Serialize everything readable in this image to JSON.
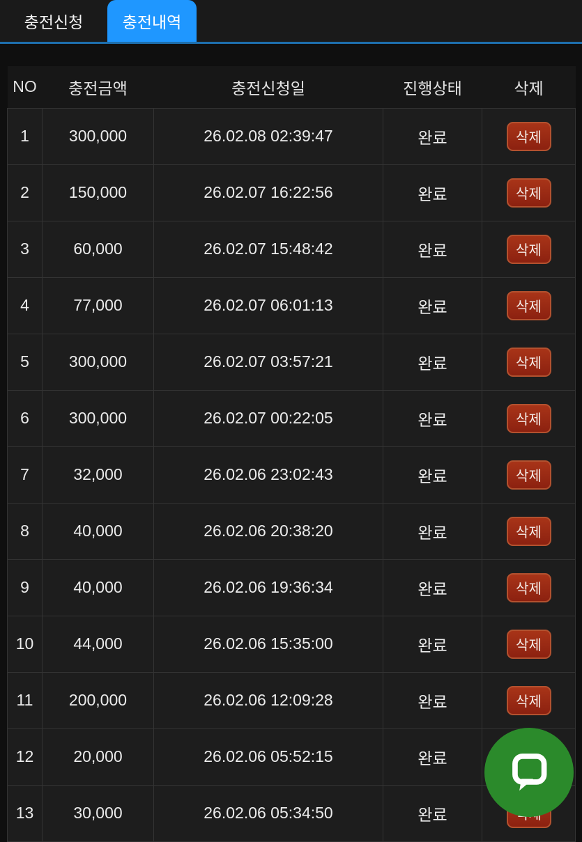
{
  "tabs": [
    {
      "label": "충전신청",
      "active": false
    },
    {
      "label": "충전내역",
      "active": true
    }
  ],
  "table": {
    "headers": [
      "NO",
      "충전금액",
      "충전신청일",
      "진행상태",
      "삭제"
    ],
    "delete_button_label": "삭제",
    "rows": [
      {
        "no": "1",
        "amount": "300,000",
        "requested_at": "26.02.08 02:39:47",
        "status": "완료"
      },
      {
        "no": "2",
        "amount": "150,000",
        "requested_at": "26.02.07 16:22:56",
        "status": "완료"
      },
      {
        "no": "3",
        "amount": "60,000",
        "requested_at": "26.02.07 15:48:42",
        "status": "완료"
      },
      {
        "no": "4",
        "amount": "77,000",
        "requested_at": "26.02.07 06:01:13",
        "status": "완료"
      },
      {
        "no": "5",
        "amount": "300,000",
        "requested_at": "26.02.07 03:57:21",
        "status": "완료"
      },
      {
        "no": "6",
        "amount": "300,000",
        "requested_at": "26.02.07 00:22:05",
        "status": "완료"
      },
      {
        "no": "7",
        "amount": "32,000",
        "requested_at": "26.02.06 23:02:43",
        "status": "완료"
      },
      {
        "no": "8",
        "amount": "40,000",
        "requested_at": "26.02.06 20:38:20",
        "status": "완료"
      },
      {
        "no": "9",
        "amount": "40,000",
        "requested_at": "26.02.06 19:36:34",
        "status": "완료"
      },
      {
        "no": "10",
        "amount": "44,000",
        "requested_at": "26.02.06 15:35:00",
        "status": "완료"
      },
      {
        "no": "11",
        "amount": "200,000",
        "requested_at": "26.02.06 12:09:28",
        "status": "완료"
      },
      {
        "no": "12",
        "amount": "20,000",
        "requested_at": "26.02.06 05:52:15",
        "status": "완료"
      },
      {
        "no": "13",
        "amount": "30,000",
        "requested_at": "26.02.06 05:34:50",
        "status": "완료"
      }
    ]
  },
  "chat": {
    "icon": "chat-bubble-icon"
  },
  "colors": {
    "accent_blue": "#1f97ff",
    "tab_underline_blue": "#1e6fae",
    "delete_red": "#9c2614",
    "chat_green": "#2b8a2b"
  }
}
